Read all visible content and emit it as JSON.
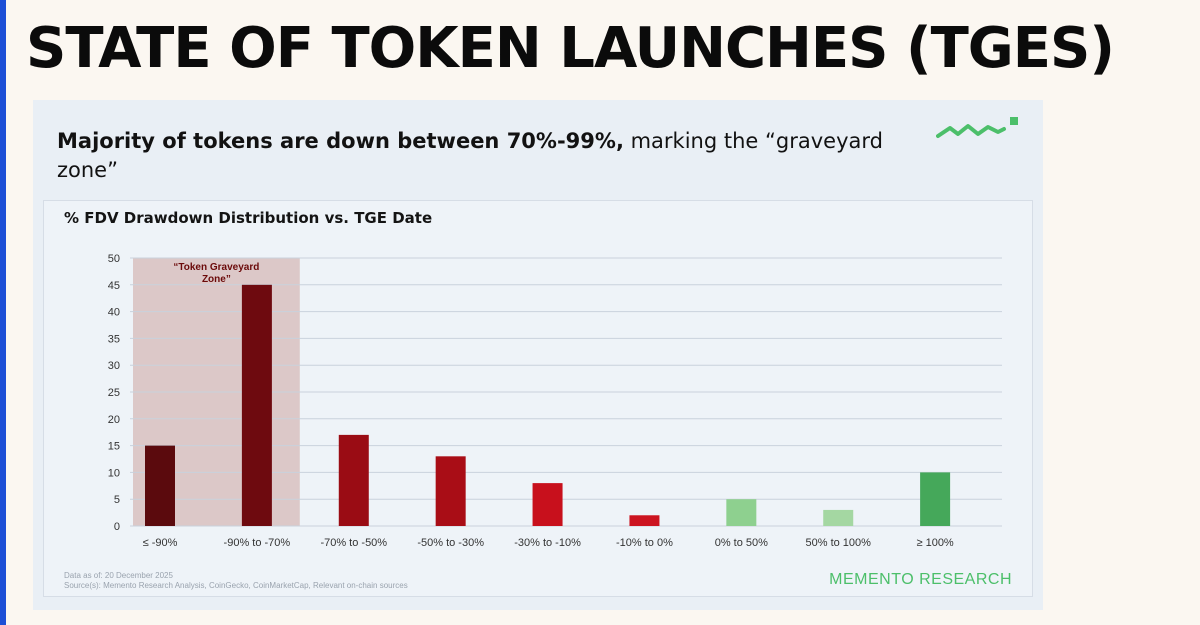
{
  "slide": {
    "title": "STATE OF TOKEN LAUNCHES (TGES)",
    "headline_bold": "Majority of tokens are down between 70%-99%,",
    "headline_rest": " marking the “graveyard zone”"
  },
  "colors": {
    "background": "#fbf7f1",
    "accent": "#1d4fd6",
    "panel": "#e9eff5",
    "brand_green": "#4cbf6a",
    "zone_shade": "#dcc8c8",
    "zone_text": "#6b0a0a"
  },
  "chart_data": {
    "type": "bar",
    "title": "% FDV Drawdown Distribution vs. TGE Date",
    "categories": [
      "≤ -90%",
      "-90% to -70%",
      "-70% to -50%",
      "-50% to -30%",
      "-30% to -10%",
      "-10% to 0%",
      "0% to 50%",
      "50% to 100%",
      "≥ 100%"
    ],
    "values": [
      15,
      45,
      17,
      13,
      8,
      2,
      5,
      3,
      10
    ],
    "bar_colors": [
      "#5b0a0d",
      "#6e0a0f",
      "#9a0c14",
      "#a90d16",
      "#c8101c",
      "#cc1420",
      "#8ed08f",
      "#a4d7a2",
      "#45a85a"
    ],
    "ylim": [
      0,
      50
    ],
    "yticks": [
      0,
      5,
      10,
      15,
      20,
      25,
      30,
      35,
      40,
      45,
      50
    ],
    "grid": true,
    "annotation": {
      "text_line1": "“Token Graveyard",
      "text_line2": "Zone”",
      "covers_categories": [
        "≤ -90%",
        "-90% to -70%"
      ]
    }
  },
  "footer": {
    "date_note": "Data as of: 20 December 2025",
    "source_note": "Source(s): Memento Research Analysis, CoinGecko, CoinMarketCap, Relevant on-chain sources",
    "brand": "MEMENTO RESEARCH"
  },
  "icons": {
    "brand_mark": "zigzag-line-icon"
  }
}
